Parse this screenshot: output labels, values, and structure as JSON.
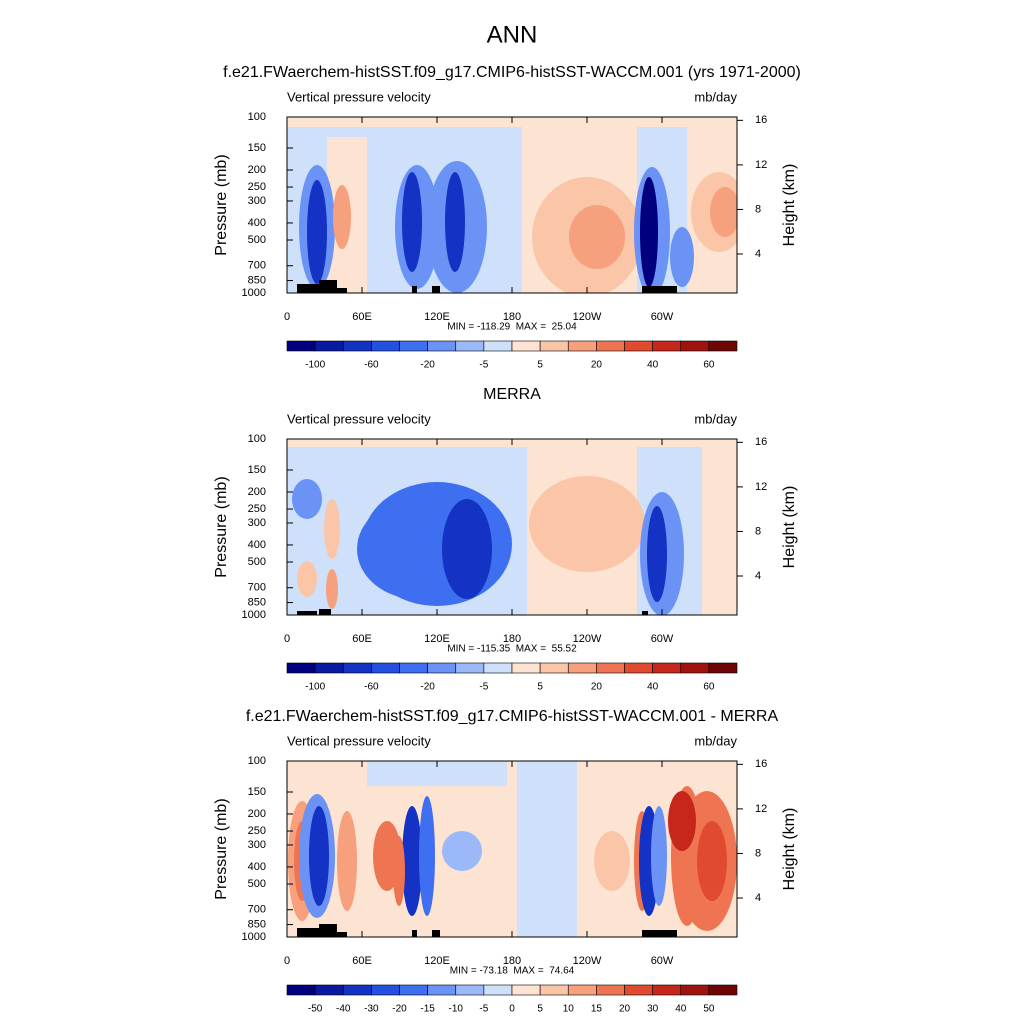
{
  "title": "ANN",
  "chart_data": [
    {
      "type": "contour",
      "title": "f.e21.FWaerchem-histSST.f09_g17.CMIP6-histSST-WACCM.001 (yrs 1971-2000)",
      "left_label": "Vertical pressure velocity",
      "right_label": "mb/day",
      "ylabel": "Pressure (mb)",
      "y2label": "Height (km)",
      "xlim": [
        0,
        360
      ],
      "xticks": [
        0,
        {
          "value": 60,
          "label": "60E"
        },
        {
          "value": 120,
          "label": "120E"
        },
        180,
        {
          "value": 240,
          "label": "120W"
        },
        {
          "value": 300,
          "label": "60W"
        }
      ],
      "ylim": [
        1000,
        100
      ],
      "log_y": true,
      "yticks": [
        100,
        150,
        200,
        250,
        300,
        400,
        500,
        700,
        850,
        1000
      ],
      "y2lim": [
        0.5,
        16.3
      ],
      "y2ticks": [
        4,
        8,
        12,
        16
      ],
      "stats": "MIN = -118.29  MAX =  25.04",
      "colorbar_ticks": [
        -100,
        -60,
        -20,
        -5,
        5,
        20,
        40,
        60
      ],
      "colorbar_colors": [
        "#00007f",
        "#0a1aa0",
        "#1432c3",
        "#2350e0",
        "#3e6ff0",
        "#6a93f5",
        "#9bb9f8",
        "#cfe0fb",
        "#fde4d2",
        "#fbc6a8",
        "#f6a07e",
        "#ef7552",
        "#e04a2f",
        "#c7261b",
        "#a0120e",
        "#6e0606"
      ]
    },
    {
      "type": "contour",
      "title": "MERRA",
      "left_label": "Vertical pressure velocity",
      "right_label": "mb/day",
      "ylabel": "Pressure (mb)",
      "y2label": "Height (km)",
      "xlim": [
        0,
        360
      ],
      "xticks": [
        0,
        {
          "value": 60,
          "label": "60E"
        },
        {
          "value": 120,
          "label": "120E"
        },
        180,
        {
          "value": 240,
          "label": "120W"
        },
        {
          "value": 300,
          "label": "60W"
        }
      ],
      "ylim": [
        1000,
        100
      ],
      "log_y": true,
      "yticks": [
        100,
        150,
        200,
        250,
        300,
        400,
        500,
        700,
        850,
        1000
      ],
      "y2lim": [
        0.5,
        16.3
      ],
      "y2ticks": [
        4,
        8,
        12,
        16
      ],
      "stats": "MIN = -115.35  MAX =  55.52",
      "colorbar_ticks": [
        -100,
        -60,
        -20,
        -5,
        5,
        20,
        40,
        60
      ],
      "colorbar_colors": [
        "#00007f",
        "#0a1aa0",
        "#1432c3",
        "#2350e0",
        "#3e6ff0",
        "#6a93f5",
        "#9bb9f8",
        "#cfe0fb",
        "#fde4d2",
        "#fbc6a8",
        "#f6a07e",
        "#ef7552",
        "#e04a2f",
        "#c7261b",
        "#a0120e",
        "#6e0606"
      ]
    },
    {
      "type": "contour",
      "title": "f.e21.FWaerchem-histSST.f09_g17.CMIP6-histSST-WACCM.001 - MERRA",
      "left_label": "Vertical pressure velocity",
      "right_label": "mb/day",
      "ylabel": "Pressure (mb)",
      "y2label": "Height (km)",
      "xlim": [
        0,
        360
      ],
      "xticks": [
        0,
        {
          "value": 60,
          "label": "60E"
        },
        {
          "value": 120,
          "label": "120E"
        },
        180,
        {
          "value": 240,
          "label": "120W"
        },
        {
          "value": 300,
          "label": "60W"
        }
      ],
      "ylim": [
        1000,
        100
      ],
      "log_y": true,
      "yticks": [
        100,
        150,
        200,
        250,
        300,
        400,
        500,
        700,
        850,
        1000
      ],
      "y2lim": [
        0.5,
        16.3
      ],
      "y2ticks": [
        4,
        8,
        12,
        16
      ],
      "stats": "MIN = -73.18  MAX =  74.64",
      "colorbar_ticks": [
        -50,
        -40,
        -30,
        -20,
        -15,
        -10,
        -5,
        0,
        5,
        10,
        15,
        20,
        30,
        40,
        50
      ],
      "colorbar_colors": [
        "#00007f",
        "#0a1aa0",
        "#1432c3",
        "#2350e0",
        "#3e6ff0",
        "#6a93f5",
        "#9bb9f8",
        "#cfe0fb",
        "#fde4d2",
        "#fbc6a8",
        "#f6a07e",
        "#ef7552",
        "#e04a2f",
        "#c7261b",
        "#a0120e",
        "#6e0606"
      ]
    }
  ]
}
